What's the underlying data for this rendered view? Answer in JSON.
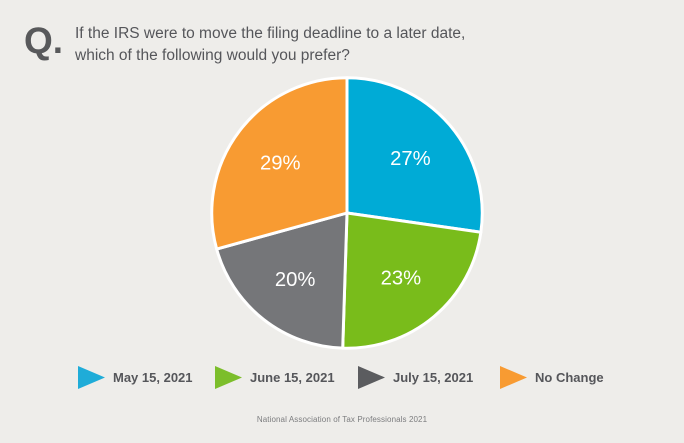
{
  "header": {
    "q_prefix": "Q.",
    "question_line1": "If the IRS were to move the filing deadline to a later date,",
    "question_line2": "which of the following would you prefer?"
  },
  "chart_data": {
    "type": "pie",
    "title": "If the IRS were to move the filing deadline to a later date, which of the following would you prefer?",
    "start_angle_deg": -90,
    "direction": "clockwise",
    "values_total": 99,
    "legend_position": "bottom",
    "legend_marker": "right-pointing-triangle",
    "slices": [
      {
        "label": "May 15, 2021",
        "value": 27,
        "display": "27%",
        "color": "#00ABD6",
        "legend_color": "#1FACD8"
      },
      {
        "label": "June 15, 2021",
        "value": 23,
        "display": "23%",
        "color": "#79BC1B",
        "legend_color": "#7CBE2B"
      },
      {
        "label": "July 15, 2021",
        "value": 20,
        "display": "20%",
        "color": "#757679",
        "legend_color": "#5B5C5F"
      },
      {
        "label": "No Change",
        "value": 29,
        "display": "29%",
        "color": "#F89B32",
        "legend_color": "#F89B32"
      }
    ]
  },
  "footer": {
    "source": "National Association of Tax Professionals 2021"
  },
  "colors": {
    "background": "#EEEDEA",
    "heading_text": "#58595B",
    "slice_label_text": "#FFFFFF",
    "footer_text": "#7C7D7F"
  }
}
